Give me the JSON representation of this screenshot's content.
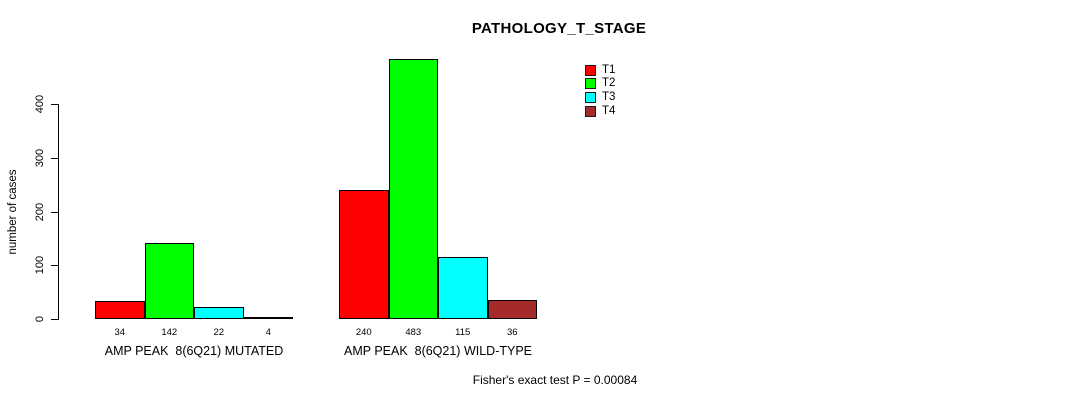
{
  "chart_data": {
    "type": "bar",
    "title": "PATHOLOGY_T_STAGE",
    "ylabel": "number of cases",
    "xlabel": "",
    "ylim": [
      0,
      400
    ],
    "yticks": [
      0,
      100,
      200,
      300,
      400
    ],
    "grid": false,
    "legend_position": "top-right",
    "legend": [
      {
        "label": "T1",
        "color": "#ff0000"
      },
      {
        "label": "T2",
        "color": "#00ff00"
      },
      {
        "label": "T3",
        "color": "#00ffff"
      },
      {
        "label": "T4",
        "color": "#a52a2a"
      }
    ],
    "series_colors": [
      "#ff0000",
      "#00ff00",
      "#00ffff",
      "#a52a2a"
    ],
    "categories": [
      "AMP PEAK  8(6Q21) MUTATED",
      "AMP PEAK  8(6Q21) WILD-TYPE"
    ],
    "groups": [
      {
        "label": "AMP PEAK  8(6Q21) MUTATED",
        "series": [
          "T1",
          "T2",
          "T3",
          "T4"
        ],
        "values": [
          34,
          142,
          22,
          4
        ]
      },
      {
        "label": "AMP PEAK  8(6Q21) WILD-TYPE",
        "series": [
          "T1",
          "T2",
          "T3",
          "T4"
        ],
        "values": [
          240,
          483,
          115,
          36
        ]
      }
    ],
    "annotation": "Fisher's exact test P = 0.00084",
    "axis_color": "#000000",
    "background_color": "#ffffff"
  }
}
